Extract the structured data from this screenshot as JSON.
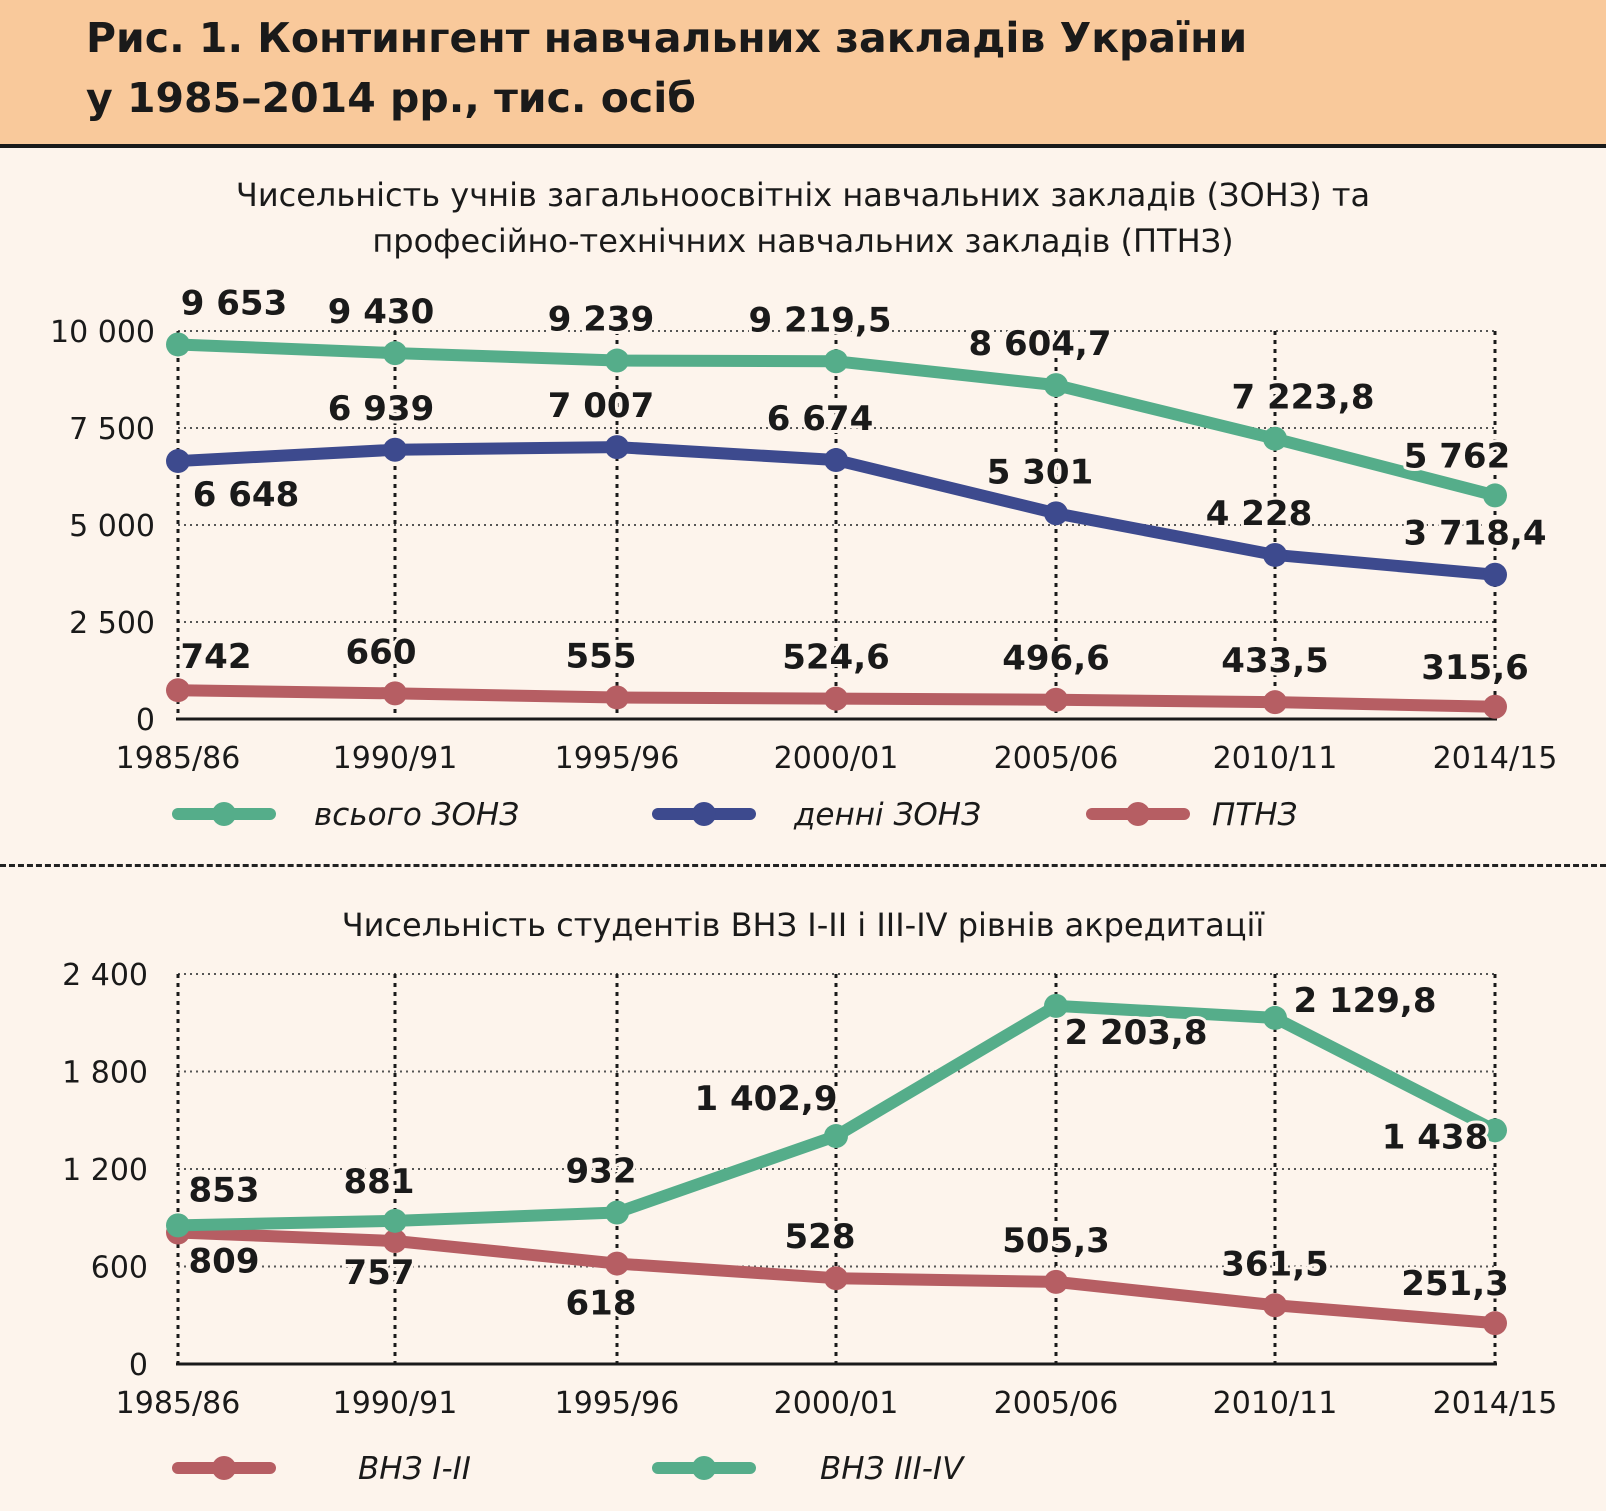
{
  "header": {
    "title_line1": "Рис. 1. Контингент навчальних закладів України",
    "title_line2": "у 1985–2014 рр., тис. осіб"
  },
  "colors": {
    "header_bg": "#f9c99b",
    "background": "#fdf4ec",
    "green": "#55ad8a",
    "blue": "#3d4a8e",
    "red": "#b65e63"
  },
  "chart_data": [
    {
      "type": "line",
      "title_lines": [
        "Чисельність учнів загальноосвітніх навчальних закладів (ЗОНЗ) та",
        "професійно-технічних навчальних закладів (ПТНЗ)"
      ],
      "categories": [
        "1985/86",
        "1990/91",
        "1995/96",
        "2000/01",
        "2005/06",
        "2010/11",
        "2014/15"
      ],
      "ylim": [
        0,
        10000
      ],
      "yticks": [
        0,
        2500,
        5000,
        7500,
        10000
      ],
      "ytick_labels": [
        "0",
        "2 500",
        "5 000",
        "7 500",
        "10 000"
      ],
      "grid": true,
      "series": [
        {
          "name": "всього ЗОНЗ",
          "color": "#55ad8a",
          "values": [
            9653,
            9430,
            9239,
            9219.5,
            8604.7,
            7223.8,
            5762
          ],
          "labels": [
            "9 653",
            "9 430",
            "9 239",
            "9 219,5",
            "8 604,7",
            "7 223,8",
            "5 762"
          ]
        },
        {
          "name": "денні ЗОНЗ",
          "color": "#3d4a8e",
          "values": [
            6648,
            6939,
            7007,
            6674,
            5301,
            4228,
            3718.4
          ],
          "labels": [
            "6 648",
            "6 939",
            "7 007",
            "6 674",
            "5 301",
            "4 228",
            "3 718,4"
          ]
        },
        {
          "name": "ПТНЗ",
          "color": "#b65e63",
          "values": [
            742,
            660,
            555,
            524.6,
            496.6,
            433.5,
            315.6
          ],
          "labels": [
            "742",
            "660",
            "555",
            "524,6",
            "496,6",
            "433,5",
            "315,6"
          ]
        }
      ]
    },
    {
      "type": "line",
      "title_lines": [
        "Чисельність студентів ВНЗ I-II і III-IV рівнів акредитації"
      ],
      "categories": [
        "1985/86",
        "1990/91",
        "1995/96",
        "2000/01",
        "2005/06",
        "2010/11",
        "2014/15"
      ],
      "ylim": [
        0,
        2400
      ],
      "yticks": [
        0,
        600,
        1200,
        1800,
        2400
      ],
      "ytick_labels": [
        "0",
        "600",
        "1 200",
        "1 800",
        "2 400"
      ],
      "grid": true,
      "series": [
        {
          "name": "ВНЗ I-II",
          "color": "#b65e63",
          "values": [
            809,
            757,
            618,
            528,
            505.3,
            361.5,
            251.3
          ],
          "labels": [
            "809",
            "757",
            "618",
            "528",
            "505,3",
            "361,5",
            "251,3"
          ]
        },
        {
          "name": "ВНЗ III-IV",
          "color": "#55ad8a",
          "values": [
            853,
            881,
            932,
            1402.9,
            2203.8,
            2129.8,
            1438
          ],
          "labels": [
            "853",
            "881",
            "932",
            "1 402,9",
            "2 203,8",
            "2 129,8",
            "1 438"
          ]
        }
      ]
    }
  ]
}
